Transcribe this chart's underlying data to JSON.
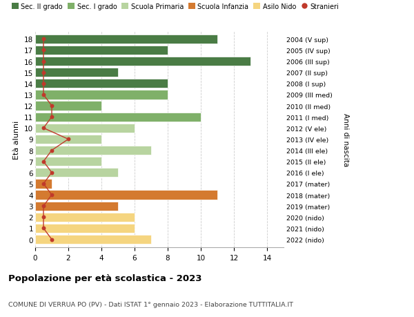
{
  "ages": [
    18,
    17,
    16,
    15,
    14,
    13,
    12,
    11,
    10,
    9,
    8,
    7,
    6,
    5,
    4,
    3,
    2,
    1,
    0
  ],
  "right_labels": [
    "2004 (V sup)",
    "2005 (IV sup)",
    "2006 (III sup)",
    "2007 (II sup)",
    "2008 (I sup)",
    "2009 (III med)",
    "2010 (II med)",
    "2011 (I med)",
    "2012 (V ele)",
    "2013 (IV ele)",
    "2014 (III ele)",
    "2015 (II ele)",
    "2016 (I ele)",
    "2017 (mater)",
    "2018 (mater)",
    "2019 (mater)",
    "2020 (nido)",
    "2021 (nido)",
    "2022 (nido)"
  ],
  "bar_values": [
    11,
    8,
    13,
    5,
    8,
    8,
    4,
    10,
    6,
    4,
    7,
    4,
    5,
    1,
    11,
    5,
    6,
    6,
    7
  ],
  "bar_colors": [
    "#4a7c45",
    "#4a7c45",
    "#4a7c45",
    "#4a7c45",
    "#4a7c45",
    "#7fb069",
    "#7fb069",
    "#7fb069",
    "#b8d4a0",
    "#b8d4a0",
    "#b8d4a0",
    "#b8d4a0",
    "#b8d4a0",
    "#d47a30",
    "#d47a30",
    "#d47a30",
    "#f5d580",
    "#f5d580",
    "#f5d580"
  ],
  "stranieri_x": [
    0.5,
    0.5,
    0.5,
    0.5,
    0.5,
    0.5,
    1.0,
    1.0,
    0.5,
    2.0,
    1.0,
    0.5,
    1.0,
    0.5,
    1.0,
    0.5,
    0.5,
    0.5,
    1.0
  ],
  "title": "Popolazione per età scolastica - 2023",
  "subtitle": "COMUNE DI VERRUA PO (PV) - Dati ISTAT 1° gennaio 2023 - Elaborazione TUTTITALIA.IT",
  "ylabel_left": "Età alunni",
  "ylabel_right": "Anni di nascita",
  "xlim": [
    0,
    15
  ],
  "color_sec2": "#4a7c45",
  "color_sec1": "#7fb069",
  "color_prim": "#b8d4a0",
  "color_inf": "#d47a30",
  "color_nido": "#f5d580",
  "color_stranieri": "#c0392b",
  "legend_labels": [
    "Sec. II grado",
    "Sec. I grado",
    "Scuola Primaria",
    "Scuola Infanzia",
    "Asilo Nido",
    "Stranieri"
  ],
  "bg_color": "#ffffff",
  "grid_color": "#cccccc"
}
